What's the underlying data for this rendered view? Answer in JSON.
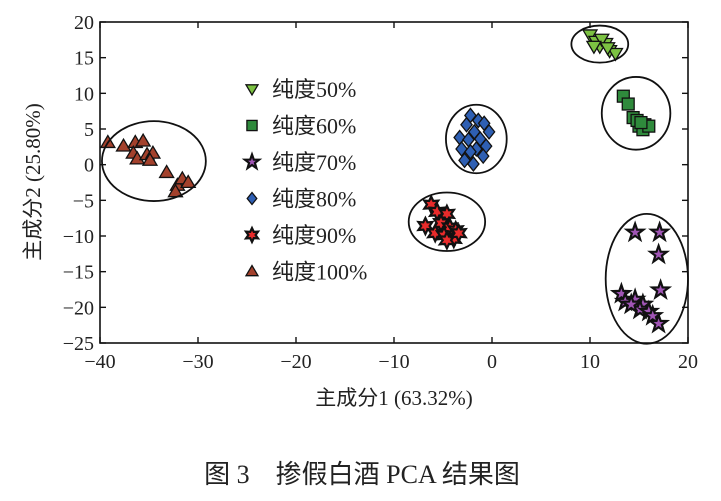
{
  "chart_data": {
    "type": "scatter",
    "xlabel": "主成分1 (63.32%)",
    "ylabel": "主成分2 (25.80%)",
    "caption": "图 3　掺假白酒 PCA 结果图",
    "xlim": [
      -40,
      20
    ],
    "ylim": [
      -25,
      20
    ],
    "xticks": [
      -40,
      -30,
      -20,
      -10,
      0,
      10,
      20
    ],
    "yticks": [
      20,
      15,
      10,
      5,
      0,
      -5,
      -10,
      -15,
      -20,
      -25
    ],
    "grid": false,
    "legend_position": "upper-left-center",
    "series": [
      {
        "name": "纯度50%",
        "marker": "triangle-down",
        "color": "#7cc242",
        "points": [
          [
            10,
            18.2
          ],
          [
            10.6,
            17.3
          ],
          [
            11,
            16.6
          ],
          [
            11.6,
            17
          ],
          [
            12,
            16
          ],
          [
            12.6,
            15.6
          ],
          [
            11.2,
            17.6
          ],
          [
            10.4,
            16.6
          ],
          [
            11.8,
            16.4
          ]
        ],
        "ellipse": {
          "center": [
            11,
            16.9
          ],
          "rx": 2.9,
          "ry": 2.6
        }
      },
      {
        "name": "纯度60%",
        "marker": "square",
        "color": "#2f8a3c",
        "points": [
          [
            13.4,
            9.6
          ],
          [
            13.9,
            8.5
          ],
          [
            14.4,
            6.6
          ],
          [
            15,
            5.4
          ],
          [
            15.6,
            5.6
          ],
          [
            14.8,
            6.2
          ],
          [
            15.4,
            4.9
          ],
          [
            16,
            5.4
          ],
          [
            15.2,
            5.9
          ]
        ],
        "ellipse": {
          "center": [
            14.7,
            7.2
          ],
          "rx": 3.5,
          "ry": 5.1
        }
      },
      {
        "name": "纯度70%",
        "marker": "star",
        "color": "#a055b5",
        "points": [
          [
            14.6,
            -9.5
          ],
          [
            17.1,
            -9.5
          ],
          [
            17,
            -12.6
          ],
          [
            17.2,
            -17.6
          ],
          [
            13.2,
            -18.1
          ],
          [
            13.6,
            -19.2
          ],
          [
            14.6,
            -18.9
          ],
          [
            15.4,
            -19.6
          ],
          [
            15.1,
            -20.3
          ],
          [
            16,
            -20.6
          ],
          [
            16.4,
            -21.2
          ],
          [
            17,
            -22.3
          ],
          [
            14.2,
            -19.6
          ]
        ],
        "ellipse": {
          "center": [
            15.8,
            -16
          ],
          "rx": 4.2,
          "ry": 9.1
        }
      },
      {
        "name": "纯度80%",
        "marker": "diamond",
        "color": "#2e5fb3",
        "points": [
          [
            -2.2,
            6.9
          ],
          [
            -1.4,
            6.2
          ],
          [
            -2.6,
            5.6
          ],
          [
            -0.8,
            5.8
          ],
          [
            -1.8,
            4.6
          ],
          [
            -3.3,
            3.8
          ],
          [
            -0.3,
            4.6
          ],
          [
            -2.4,
            3.5
          ],
          [
            -3.1,
            2.2
          ],
          [
            -1.6,
            2.2
          ],
          [
            -0.6,
            2.6
          ],
          [
            -2.2,
            1.8
          ],
          [
            -0.9,
            1.2
          ],
          [
            -2.8,
            0.6
          ],
          [
            -1.9,
            0.1
          ],
          [
            -1.2,
            3.6
          ]
        ],
        "ellipse": {
          "center": [
            -1.6,
            3.6
          ],
          "rx": 3.1,
          "ry": 4.8
        }
      },
      {
        "name": "纯度90%",
        "marker": "hexagram",
        "color": "#e82b2b",
        "points": [
          [
            -6.2,
            -5.6
          ],
          [
            -5.6,
            -6.6
          ],
          [
            -4.6,
            -6.9
          ],
          [
            -6.8,
            -8.6
          ],
          [
            -5.2,
            -8.2
          ],
          [
            -4.3,
            -8.8
          ],
          [
            -3.7,
            -9.2
          ],
          [
            -5.8,
            -9.6
          ],
          [
            -4.9,
            -9.9
          ],
          [
            -3.9,
            -10.4
          ],
          [
            -4.6,
            -10.6
          ],
          [
            -3.4,
            -9.6
          ]
        ],
        "ellipse": {
          "center": [
            -4.6,
            -8
          ],
          "rx": 3.9,
          "ry": 4.1
        }
      },
      {
        "name": "纯度100%",
        "marker": "triangle-up",
        "color": "#a3412c",
        "points": [
          [
            -39.2,
            3.1
          ],
          [
            -37.6,
            2.6
          ],
          [
            -36.4,
            3.1
          ],
          [
            -35.6,
            3.3
          ],
          [
            -36.6,
            1.6
          ],
          [
            -36.2,
            0.8
          ],
          [
            -35.2,
            1.4
          ],
          [
            -34.6,
            1.6
          ],
          [
            -34.9,
            0.6
          ],
          [
            -33.2,
            -1.1
          ],
          [
            -32.1,
            -2.9
          ],
          [
            -31.6,
            -2
          ],
          [
            -31,
            -2.5
          ],
          [
            -32.3,
            -3.8
          ]
        ],
        "ellipse": {
          "center": [
            -34.5,
            0.5
          ],
          "rx": 5.3,
          "ry": 5.6
        }
      }
    ]
  }
}
